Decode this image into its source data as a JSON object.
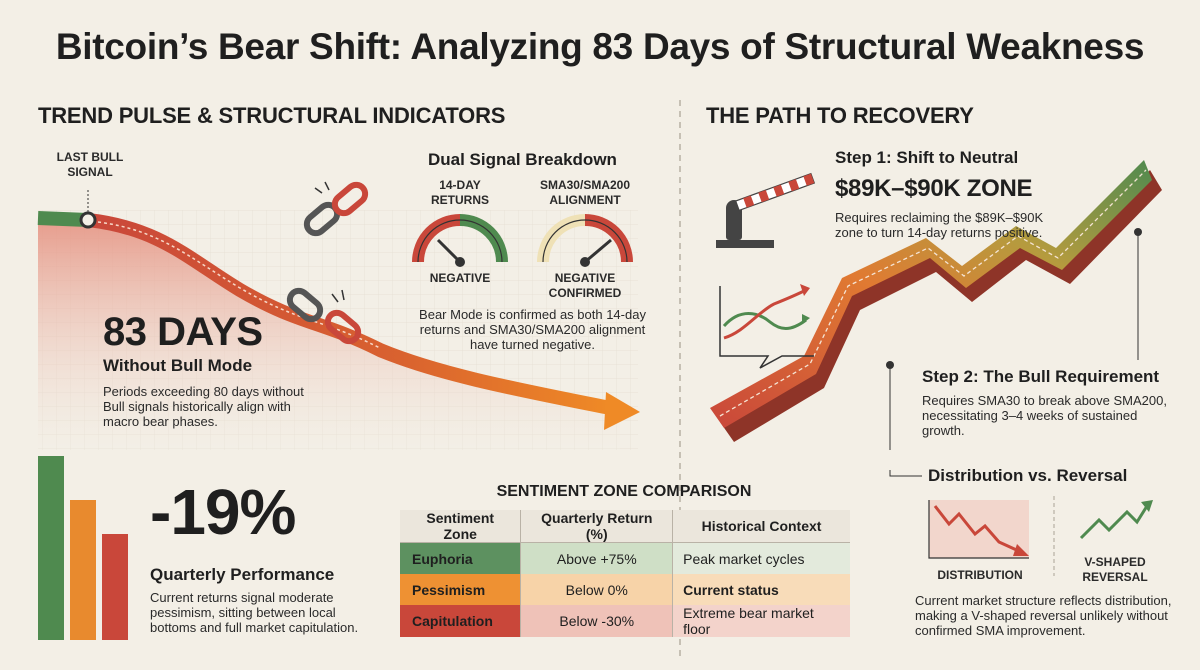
{
  "title": "Bitcoin’s Bear Shift: Analyzing 83 Days of Structural Weakness",
  "left": {
    "heading": "TREND PULSE & STRUCTURAL INDICATORS",
    "last_bull_signal": [
      "LAST BULL",
      "SIGNAL"
    ],
    "days_big": "83 DAYS",
    "days_sub": "Without Bull Mode",
    "days_desc": [
      "Periods exceeding 80 days without",
      "Bull signals historically align with",
      "macro bear phases."
    ],
    "dual": {
      "heading": "Dual Signal Breakdown",
      "gauge1_title": [
        "14-DAY",
        "RETURNS"
      ],
      "gauge1_state": "NEGATIVE",
      "gauge2_title": [
        "SMA30/SMA200",
        "ALIGNMENT"
      ],
      "gauge2_state": [
        "NEGATIVE",
        "CONFIRMED"
      ],
      "desc": [
        "Bear Mode is confirmed as both 14-day",
        "returns and SMA30/SMA200 alignment",
        "have turned negative."
      ]
    },
    "perf": {
      "value": "-19%",
      "label": "Quarterly Performance",
      "desc": [
        "Current returns signal moderate",
        "pessimism, sitting between local",
        "bottoms and full market capitulation."
      ]
    }
  },
  "table": {
    "heading": "SENTIMENT ZONE COMPARISON",
    "headers": [
      "Sentiment Zone",
      "Quarterly Return (%)",
      "Historical Context"
    ],
    "rows": [
      {
        "zone": "Euphoria",
        "ret": "Above +75%",
        "ctx": "Peak market cycles"
      },
      {
        "zone": "Pessimism",
        "ret": "Below 0%",
        "ctx": "Current status"
      },
      {
        "zone": "Capitulation",
        "ret": "Below -30%",
        "ctx": "Extreme bear market floor"
      }
    ]
  },
  "right": {
    "heading": "THE PATH TO RECOVERY",
    "step1_title": "Step 1: Shift to Neutral",
    "step1_zone": "$89K–$90K ZONE",
    "step1_desc": [
      "Requires reclaiming the $89K–$90K",
      "zone to turn 14-day returns positive."
    ],
    "step2_title": "Step 2: The Bull Requirement",
    "step2_desc": [
      "Requires SMA30 to break above SMA200,",
      "necessitating 3–4 weeks of sustained",
      "growth."
    ],
    "dist_title": "Distribution vs. Reversal",
    "dist_label": "DISTRIBUTION",
    "vshape_label": [
      "V-SHAPED",
      "REVERSAL"
    ],
    "dist_desc": [
      "Current market structure reflects distribution,",
      "making a V-shaped reversal unlikely without",
      "confirmed SMA improvement."
    ]
  },
  "colors": {
    "green": "#4f8a4f",
    "orange": "#e88a2e",
    "red": "#c9473a",
    "bg": "#f3efe6"
  }
}
